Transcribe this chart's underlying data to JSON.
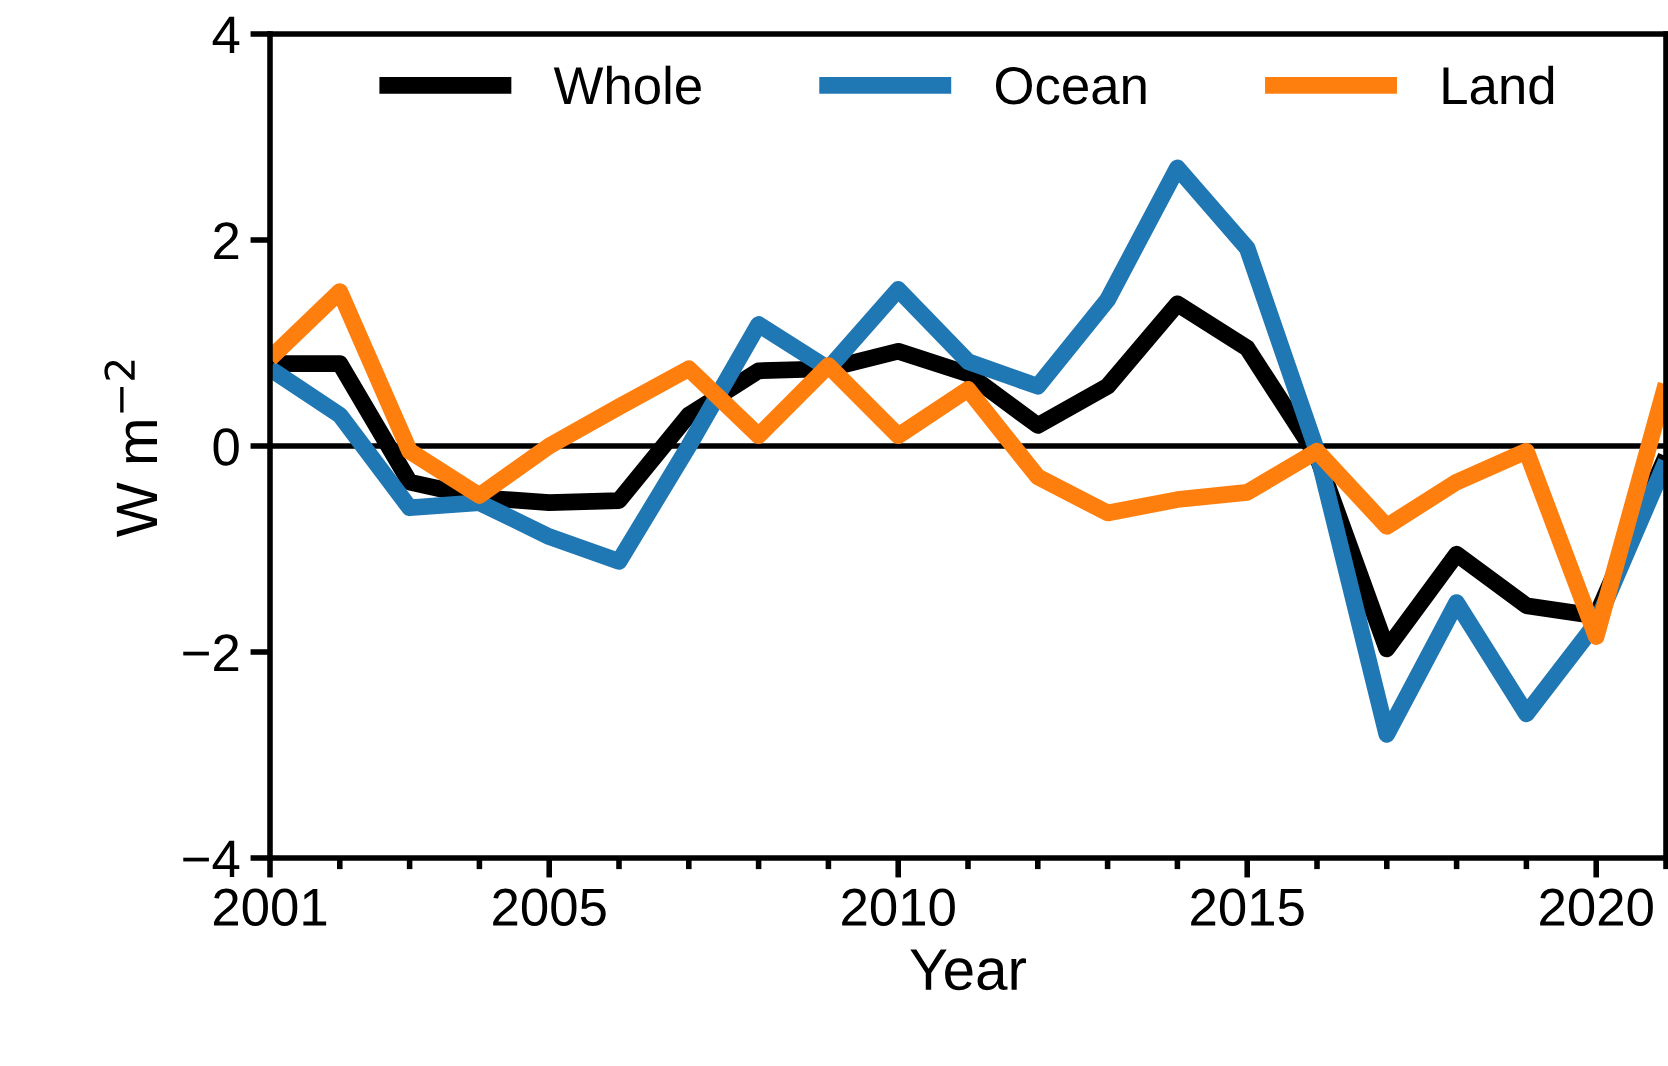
{
  "chart_data": {
    "type": "line",
    "xlabel": "Year",
    "ylabel": "W m$^{−2}$",
    "x": [
      2001,
      2002,
      2003,
      2004,
      2005,
      2006,
      2007,
      2008,
      2009,
      2010,
      2011,
      2012,
      2013,
      2014,
      2015,
      2016,
      2017,
      2018,
      2019,
      2020,
      2021
    ],
    "series": [
      {
        "name": "Whole",
        "color": "#000000",
        "values": [
          0.8,
          0.8,
          -0.35,
          -0.5,
          -0.55,
          -0.53,
          0.3,
          0.73,
          0.75,
          0.92,
          0.7,
          0.2,
          0.58,
          1.38,
          0.95,
          -0.1,
          -1.97,
          -1.05,
          -1.55,
          -1.65,
          -0.1
        ]
      },
      {
        "name": "Ocean",
        "color": "#1f77b4",
        "values": [
          0.75,
          0.3,
          -0.6,
          -0.55,
          -0.88,
          -1.12,
          0.0,
          1.18,
          0.75,
          1.52,
          0.82,
          0.58,
          1.42,
          2.7,
          1.92,
          -0.05,
          -2.8,
          -1.52,
          -2.6,
          -1.72,
          -0.15
        ]
      },
      {
        "name": "Land",
        "color": "#ff7f0e",
        "values": [
          0.85,
          1.5,
          -0.05,
          -0.48,
          0.0,
          0.38,
          0.75,
          0.1,
          0.78,
          0.1,
          0.55,
          -0.3,
          -0.65,
          -0.52,
          -0.45,
          -0.05,
          -0.78,
          -0.35,
          -0.05,
          -1.85,
          0.6
        ]
      }
    ],
    "xlim": [
      2001,
      2021
    ],
    "xticks": [
      2001,
      2005,
      2010,
      2015,
      2020
    ],
    "ylim": [
      -4,
      4
    ],
    "yticks": [
      -4,
      -2,
      0,
      2,
      4
    ],
    "ref_lines": [
      {
        "axis": "y",
        "value": 0,
        "color": "#000000"
      }
    ],
    "legend": "top",
    "grid": false,
    "marker": "none",
    "line_style": "solid"
  }
}
